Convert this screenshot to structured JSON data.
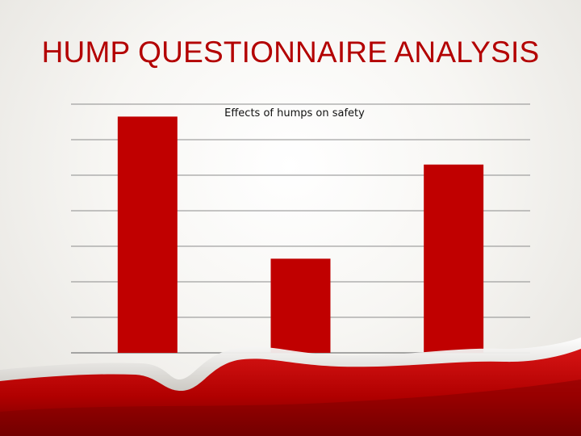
{
  "slide": {
    "title": "HUMP QUESTIONNAIRE ANALYSIS"
  },
  "colors": {
    "bar": "#c00000",
    "gridline": "#8c8c8c",
    "title": "#b30000",
    "wave_dark": "#8a0000",
    "wave_light": "#d61414"
  },
  "chart_data": {
    "type": "bar",
    "title": "Effects of humps on safety",
    "categories": [
      "",
      "",
      ""
    ],
    "values": [
      6.65,
      2.65,
      5.3
    ],
    "ylim": [
      0,
      7
    ],
    "grid": true,
    "legend": "none",
    "xlabel": "",
    "ylabel": ""
  }
}
